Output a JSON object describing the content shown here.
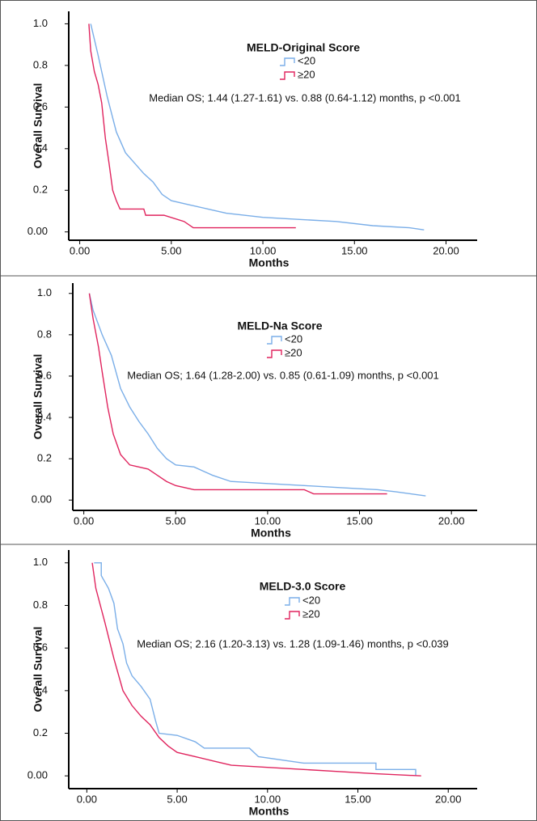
{
  "chart_data": [
    {
      "type": "line",
      "title": "MELD-Original Score",
      "annotation": "Median OS; 1.44 (1.27-1.61) vs. 0.88 (0.64-1.12) months, p <0.001",
      "xlabel": "Months",
      "ylabel": "Overall Survival",
      "xlim": [
        -0.6,
        21.7
      ],
      "ylim": [
        -0.04,
        1.06
      ],
      "xticks": [
        {
          "value": 0,
          "label": "0.00"
        },
        {
          "value": 5,
          "label": "5.00"
        },
        {
          "value": 10,
          "label": "10.00"
        },
        {
          "value": 15,
          "label": "15.00"
        },
        {
          "value": 20,
          "label": "20.00"
        }
      ],
      "yticks": [
        {
          "value": 0,
          "label": "0.00"
        },
        0.2,
        0.4,
        0.6,
        0.8,
        {
          "value": 1,
          "label": "1.0"
        }
      ],
      "series": [
        {
          "name": "<20",
          "color": "#7aaee8",
          "x": [
            0.6,
            1.0,
            1.5,
            2.0,
            2.5,
            3.0,
            3.5,
            4.0,
            4.5,
            5.0,
            6.0,
            7.0,
            8.0,
            10.0,
            12.0,
            14.0,
            16.0,
            18.0,
            18.8
          ],
          "values": [
            1.0,
            0.85,
            0.65,
            0.48,
            0.38,
            0.33,
            0.28,
            0.24,
            0.18,
            0.15,
            0.13,
            0.11,
            0.09,
            0.07,
            0.06,
            0.05,
            0.03,
            0.02,
            0.01
          ]
        },
        {
          "name": "≥20",
          "color": "#e0245e",
          "x": [
            0.5,
            0.6,
            0.8,
            1.0,
            1.2,
            1.4,
            1.6,
            1.8,
            2.0,
            2.2,
            3.5,
            3.6,
            4.6,
            5.7,
            6.2,
            11.8
          ],
          "values": [
            1.0,
            0.87,
            0.77,
            0.71,
            0.62,
            0.45,
            0.33,
            0.2,
            0.15,
            0.11,
            0.11,
            0.08,
            0.08,
            0.05,
            0.02,
            0.02
          ]
        }
      ]
    },
    {
      "type": "line",
      "title": "MELD-Na Score",
      "annotation": "Median OS; 1.64 (1.28-2.00) vs. 0.85 (0.61-1.09) months, p <0.001",
      "xlabel": "Months",
      "ylabel": "Overall Survival",
      "xlim": [
        -0.6,
        21.4
      ],
      "ylim": [
        -0.05,
        1.05
      ],
      "xticks": [
        {
          "value": 0,
          "label": "0.00"
        },
        {
          "value": 5,
          "label": "5.00"
        },
        {
          "value": 10,
          "label": "10.00"
        },
        {
          "value": 15,
          "label": "15.00"
        },
        {
          "value": 20,
          "label": "20.00"
        }
      ],
      "yticks": [
        {
          "value": 0,
          "label": "0.00"
        },
        0.2,
        0.4,
        0.6,
        0.8,
        {
          "value": 1,
          "label": "1.0"
        }
      ],
      "series": [
        {
          "name": "<20",
          "color": "#7aaee8",
          "x": [
            0.3,
            0.5,
            1.0,
            1.5,
            2.0,
            2.5,
            3.0,
            3.5,
            4.0,
            4.5,
            5.0,
            6.0,
            7.0,
            8.0,
            10.0,
            12.0,
            14.0,
            16.0,
            17.0,
            18.6
          ],
          "values": [
            1.0,
            0.92,
            0.8,
            0.7,
            0.54,
            0.45,
            0.38,
            0.32,
            0.25,
            0.2,
            0.17,
            0.16,
            0.12,
            0.09,
            0.08,
            0.07,
            0.06,
            0.05,
            0.04,
            0.02
          ]
        },
        {
          "name": "≥20",
          "color": "#e0245e",
          "x": [
            0.3,
            0.5,
            0.8,
            1.0,
            1.3,
            1.6,
            2.0,
            2.5,
            3.5,
            4.0,
            4.5,
            5.0,
            6.0,
            12.0,
            12.5,
            16.5
          ],
          "values": [
            1.0,
            0.88,
            0.74,
            0.62,
            0.45,
            0.32,
            0.22,
            0.17,
            0.15,
            0.12,
            0.09,
            0.07,
            0.05,
            0.05,
            0.03,
            0.03
          ]
        }
      ]
    },
    {
      "type": "line",
      "title": "MELD-3.0 Score",
      "annotation": "Median OS; 2.16 (1.20-3.13) vs. 1.28 (1.09-1.46) months, p <0.039",
      "xlabel": "Months",
      "ylabel": "Overall Survival",
      "xlim": [
        -1.0,
        21.6
      ],
      "ylim": [
        -0.06,
        1.06
      ],
      "xticks": [
        {
          "value": 0,
          "label": "0.00"
        },
        {
          "value": 5,
          "label": "5.00"
        },
        {
          "value": 10,
          "label": "10.00"
        },
        {
          "value": 15,
          "label": "15.00"
        },
        {
          "value": 20,
          "label": "20.00"
        }
      ],
      "yticks": [
        {
          "value": 0,
          "label": "0.00"
        },
        0.2,
        0.4,
        0.6,
        0.8,
        {
          "value": 1,
          "label": "1.0"
        }
      ],
      "series": [
        {
          "name": "<20",
          "color": "#7aaee8",
          "x": [
            0.4,
            0.8,
            0.8,
            1.2,
            1.5,
            1.7,
            2.0,
            2.2,
            2.5,
            3.0,
            3.5,
            3.8,
            4.0,
            5.0,
            6.0,
            6.5,
            9.0,
            9.5,
            12.0,
            16.0,
            16.0,
            18.2,
            18.2
          ],
          "values": [
            1.0,
            1.0,
            0.94,
            0.88,
            0.81,
            0.69,
            0.62,
            0.53,
            0.47,
            0.42,
            0.36,
            0.26,
            0.2,
            0.19,
            0.16,
            0.13,
            0.13,
            0.09,
            0.06,
            0.06,
            0.03,
            0.03,
            0.0
          ]
        },
        {
          "name": "≥20",
          "color": "#e0245e",
          "x": [
            0.3,
            0.5,
            1.0,
            1.5,
            2.0,
            2.5,
            3.0,
            3.5,
            4.0,
            4.5,
            5.0,
            6.0,
            7.0,
            8.0,
            10.0,
            12.0,
            14.0,
            16.0,
            18.5
          ],
          "values": [
            1.0,
            0.88,
            0.72,
            0.55,
            0.4,
            0.33,
            0.28,
            0.24,
            0.18,
            0.14,
            0.11,
            0.09,
            0.07,
            0.05,
            0.04,
            0.03,
            0.02,
            0.01,
            0.0
          ]
        }
      ]
    }
  ]
}
